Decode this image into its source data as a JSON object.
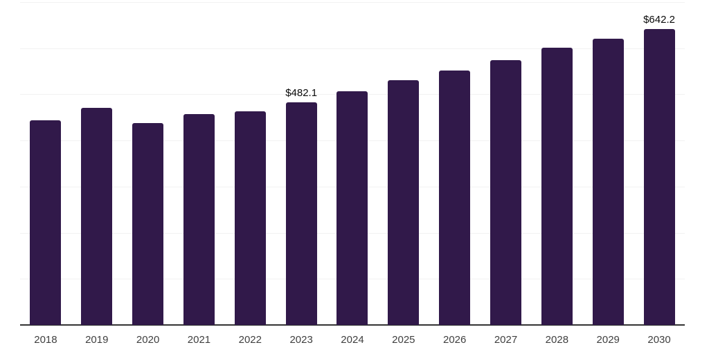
{
  "chart_data": {
    "type": "bar",
    "title": "",
    "xlabel": "",
    "ylabel": "",
    "categories": [
      "2018",
      "2019",
      "2020",
      "2021",
      "2022",
      "2023",
      "2024",
      "2025",
      "2026",
      "2027",
      "2028",
      "2029",
      "2030"
    ],
    "values": [
      443.9,
      470.2,
      437.0,
      457.3,
      462.8,
      482.1,
      505.9,
      530.8,
      552.0,
      574.4,
      600.7,
      620.9,
      642.2
    ],
    "data_labels": [
      null,
      null,
      null,
      null,
      null,
      "$482.1",
      null,
      null,
      null,
      null,
      null,
      null,
      "$642.2"
    ],
    "ylim": [
      0,
      700
    ],
    "gridline_interval": 100,
    "grid": true,
    "legend": false,
    "bar_color": "#31194a",
    "gridline_color": "#f2f2f2",
    "axis_line_color": "#333333",
    "tick_label_color": "#3f3f3f",
    "data_label_color": "#0a0a0a",
    "background_color": "#ffffff"
  }
}
